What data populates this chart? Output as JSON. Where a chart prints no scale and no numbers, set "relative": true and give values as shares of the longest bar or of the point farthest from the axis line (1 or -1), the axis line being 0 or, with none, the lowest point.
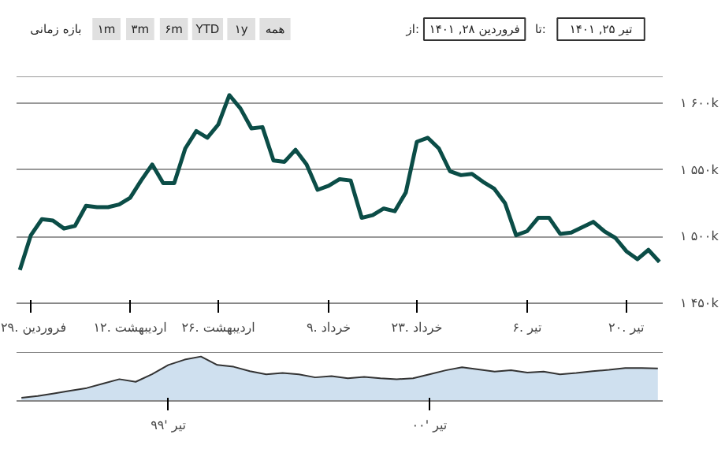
{
  "chart_data": [
    {
      "type": "line",
      "categories": [
        null,
        "۲۹. فروردین",
        null,
        null,
        null,
        null,
        null,
        null,
        null,
        null,
        "۱۲. اردیبهشت",
        null,
        null,
        null,
        null,
        null,
        null,
        null,
        "۲۶. اردیبهشت",
        null,
        null,
        null,
        null,
        null,
        null,
        null,
        null,
        null,
        "۹. خرداد",
        null,
        null,
        null,
        null,
        null,
        null,
        null,
        "۲۳. خرداد",
        null,
        null,
        null,
        null,
        null,
        null,
        null,
        null,
        null,
        "۶. تیر",
        null,
        null,
        null,
        null,
        null,
        null,
        null,
        null,
        "۲۰. تیر",
        null,
        null,
        null
      ],
      "series": [
        {
          "color": "#0b4d47",
          "values": [
            1475000,
            1501000,
            1513000,
            1512000,
            1506000,
            1508000,
            1523000,
            1522000,
            1522000,
            1524000,
            1529000,
            1542000,
            1554000,
            1540000,
            1540000,
            1566000,
            1579000,
            1574000,
            1584000,
            1606000,
            1596000,
            1581000,
            1582000,
            1557000,
            1556000,
            1565000,
            1554000,
            1535000,
            1538000,
            1543000,
            1542000,
            1514000,
            1516000,
            1521000,
            1519000,
            1533000,
            1571000,
            1574000,
            1566000,
            1549000,
            1546000,
            1547000,
            1541000,
            1536000,
            1525000,
            1501000,
            1504000,
            1514000,
            1514000,
            1502000,
            1503000,
            1507000,
            1511000,
            1504000,
            1499000,
            1489000,
            1483000,
            1490000,
            1481000
          ]
        }
      ],
      "ylim": [
        1450000,
        1620000
      ],
      "yticks": [
        {
          "value": 1450000,
          "label": "۱ ۴۵۰k"
        },
        {
          "value": 1500000,
          "label": "۱ ۵۰۰k"
        },
        {
          "value": 1550000,
          "label": "۱ ۵۵۰k"
        },
        {
          "value": 1600000,
          "label": "۱ ۶۰۰k"
        }
      ],
      "grid": "y",
      "marker": "none",
      "line_style": "solid",
      "annotations": [
        "بازه زمانی",
        "۱m",
        "۳m",
        "۶m",
        "YTD",
        "۱y",
        "همه",
        "از:",
        "فروردین ۲۸, ۱۴۰۱",
        "تا:",
        "تیر ۲۵, ۱۴۰۱"
      ]
    },
    {
      "type": "area",
      "relative": true,
      "categories": [
        null,
        null,
        null,
        null,
        null,
        null,
        null,
        null,
        null,
        "تیر '۹۹",
        null,
        null,
        null,
        null,
        null,
        null,
        null,
        null,
        null,
        null,
        null,
        null,
        null,
        null,
        null,
        "تیر '۰۰",
        null,
        null,
        null,
        null,
        null,
        null,
        null,
        null,
        null,
        null,
        null,
        null,
        null,
        null
      ],
      "series": [
        {
          "color": "#cfe0ef",
          "values": [
            0.07,
            0.11,
            0.17,
            0.23,
            0.29,
            0.39,
            0.49,
            0.43,
            0.6,
            0.81,
            0.93,
            1.0,
            0.81,
            0.77,
            0.67,
            0.6,
            0.63,
            0.6,
            0.53,
            0.56,
            0.51,
            0.54,
            0.51,
            0.49,
            0.51,
            0.6,
            0.69,
            0.76,
            0.71,
            0.66,
            0.69,
            0.64,
            0.66,
            0.6,
            0.63,
            0.67,
            0.7,
            0.74,
            0.74,
            0.73
          ]
        }
      ],
      "grid": false
    }
  ]
}
